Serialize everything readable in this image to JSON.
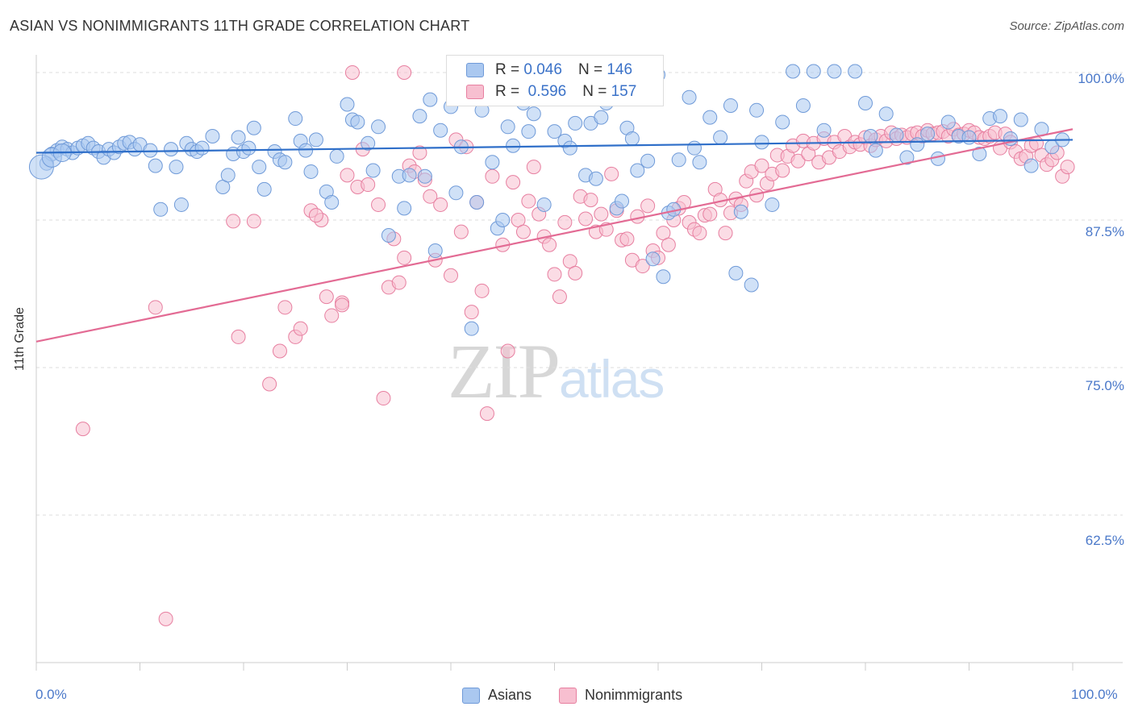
{
  "title": "ASIAN VS NONIMMIGRANTS 11TH GRADE CORRELATION CHART",
  "source": "Source: ZipAtlas.com",
  "watermark": {
    "zip": "ZIP",
    "atlas": "atlas"
  },
  "legend": {
    "rows": [
      {
        "r_label": "R =",
        "r_value": "0.046",
        "n_label": "N =",
        "n_value": "146"
      },
      {
        "r_label": "R =",
        "r_value": "0.596",
        "n_label": "N =",
        "n_value": "157"
      }
    ]
  },
  "bottom_legend": [
    "Asians",
    "Nonimmigrants"
  ],
  "colors": {
    "asians_fill": "#aac8f0",
    "asians_stroke": "#6f9ad8",
    "asians_line": "#2f6fc9",
    "nonimm_fill": "#f7bfd0",
    "nonimm_stroke": "#e77fa0",
    "nonimm_line": "#e36b94",
    "tick_text": "#4a78c9"
  },
  "chart_data": {
    "type": "scatter",
    "title": "ASIAN VS NONIMMIGRANTS 11TH GRADE CORRELATION CHART",
    "xlabel": "",
    "ylabel": "11th Grade",
    "xlim": [
      0,
      100
    ],
    "ylim": [
      50,
      101.5
    ],
    "x_tick_labels": [
      "0.0%",
      "100.0%"
    ],
    "y_ticks": [
      100,
      87.5,
      75,
      62.5
    ],
    "y_tick_labels": [
      "100.0%",
      "87.5%",
      "75.0%",
      "62.5%"
    ],
    "grid": true,
    "legend_position": "top-center",
    "series": [
      {
        "name": "Asians",
        "r": 0.046,
        "n": 146,
        "trend": {
          "x": [
            0,
            100
          ],
          "y": [
            93.2,
            94.3
          ]
        },
        "points": [
          [
            1,
            92.3
          ],
          [
            1.5,
            93.1
          ],
          [
            2,
            93.4
          ],
          [
            2.5,
            93.7
          ],
          [
            3,
            93.5
          ],
          [
            3.5,
            93.2
          ],
          [
            4,
            93.6
          ],
          [
            4.5,
            93.8
          ],
          [
            5,
            94.0
          ],
          [
            5.5,
            93.6
          ],
          [
            6,
            93.3
          ],
          [
            6.5,
            92.8
          ],
          [
            7,
            93.5
          ],
          [
            7.5,
            93.2
          ],
          [
            8,
            93.7
          ],
          [
            8.5,
            94.0
          ],
          [
            9,
            94.1
          ],
          [
            9.5,
            93.5
          ],
          [
            10,
            93.9
          ],
          [
            11,
            93.4
          ],
          [
            11.5,
            92.1
          ],
          [
            12,
            88.4
          ],
          [
            13,
            93.5
          ],
          [
            13.5,
            92.0
          ],
          [
            14,
            88.8
          ],
          [
            14.5,
            94.0
          ],
          [
            15,
            93.5
          ],
          [
            15.5,
            93.3
          ],
          [
            16,
            93.6
          ],
          [
            17,
            94.6
          ],
          [
            18,
            90.3
          ],
          [
            18.5,
            91.3
          ],
          [
            19,
            93.1
          ],
          [
            19.5,
            94.5
          ],
          [
            20,
            93.3
          ],
          [
            20.5,
            93.6
          ],
          [
            21,
            95.3
          ],
          [
            21.5,
            92.0
          ],
          [
            22,
            90.1
          ],
          [
            23,
            93.3
          ],
          [
            23.5,
            92.6
          ],
          [
            24,
            92.4
          ],
          [
            25,
            96.1
          ],
          [
            25.5,
            94.2
          ],
          [
            26,
            93.4
          ],
          [
            26.5,
            91.6
          ],
          [
            27,
            94.3
          ],
          [
            28,
            89.9
          ],
          [
            28.5,
            89.0
          ],
          [
            29,
            92.9
          ],
          [
            30,
            97.3
          ],
          [
            30.5,
            96.0
          ],
          [
            31,
            95.8
          ],
          [
            32,
            94.0
          ],
          [
            32.5,
            91.7
          ],
          [
            33,
            95.4
          ],
          [
            34,
            86.2
          ],
          [
            35,
            91.2
          ],
          [
            35.5,
            88.5
          ],
          [
            36,
            91.3
          ],
          [
            37,
            96.3
          ],
          [
            37.5,
            91.2
          ],
          [
            38,
            97.7
          ],
          [
            38.5,
            84.9
          ],
          [
            39,
            95.1
          ],
          [
            40,
            97.1
          ],
          [
            40.5,
            89.8
          ],
          [
            41,
            93.7
          ],
          [
            42,
            78.3
          ],
          [
            42.5,
            89.0
          ],
          [
            43,
            96.8
          ],
          [
            44,
            92.4
          ],
          [
            44.5,
            86.8
          ],
          [
            45,
            87.5
          ],
          [
            45.5,
            95.4
          ],
          [
            46,
            93.8
          ],
          [
            47,
            97.4
          ],
          [
            47.5,
            95.0
          ],
          [
            48,
            96.5
          ],
          [
            49,
            88.8
          ],
          [
            50,
            95.0
          ],
          [
            51,
            94.2
          ],
          [
            51.5,
            93.6
          ],
          [
            52,
            95.7
          ],
          [
            53,
            91.3
          ],
          [
            53.5,
            95.7
          ],
          [
            54,
            91.0
          ],
          [
            54.5,
            96.2
          ],
          [
            55,
            97.4
          ],
          [
            56,
            88.5
          ],
          [
            56.5,
            89.1
          ],
          [
            57,
            95.3
          ],
          [
            57.5,
            94.4
          ],
          [
            58,
            91.7
          ],
          [
            59,
            92.5
          ],
          [
            59.5,
            84.2
          ],
          [
            60,
            99.8
          ],
          [
            60.5,
            82.7
          ],
          [
            61,
            88.1
          ],
          [
            61.5,
            88.4
          ],
          [
            62,
            92.6
          ],
          [
            63,
            97.9
          ],
          [
            63.5,
            93.6
          ],
          [
            64,
            92.4
          ],
          [
            65,
            96.2
          ],
          [
            66,
            94.5
          ],
          [
            67,
            97.2
          ],
          [
            67.5,
            83.0
          ],
          [
            68,
            88.2
          ],
          [
            69,
            82.0
          ],
          [
            69.5,
            96.8
          ],
          [
            70,
            94.1
          ],
          [
            71,
            88.8
          ],
          [
            72,
            95.8
          ],
          [
            73,
            100.1
          ],
          [
            74,
            97.2
          ],
          [
            75,
            100.1
          ],
          [
            76,
            95.1
          ],
          [
            77,
            100.1
          ],
          [
            79,
            100.1
          ],
          [
            80,
            97.4
          ],
          [
            80.5,
            94.6
          ],
          [
            81,
            93.4
          ],
          [
            82,
            96.5
          ],
          [
            83,
            94.7
          ],
          [
            84,
            92.8
          ],
          [
            85,
            93.9
          ],
          [
            86,
            94.8
          ],
          [
            87,
            92.7
          ],
          [
            88,
            95.8
          ],
          [
            89,
            94.6
          ],
          [
            90,
            94.5
          ],
          [
            91,
            93.1
          ],
          [
            92,
            96.1
          ],
          [
            93,
            96.3
          ],
          [
            94,
            94.4
          ],
          [
            95,
            96.0
          ],
          [
            96,
            92.1
          ],
          [
            97,
            95.2
          ],
          [
            98,
            93.7
          ],
          [
            99,
            94.3
          ]
        ]
      },
      {
        "name": "Nonimmigrants",
        "r": 0.596,
        "n": 157,
        "trend": {
          "x": [
            0,
            100
          ],
          "y": [
            77.2,
            95.2
          ]
        },
        "points": [
          [
            4.5,
            69.8
          ],
          [
            11.5,
            80.1
          ],
          [
            12.5,
            53.7
          ],
          [
            19,
            87.4
          ],
          [
            21,
            87.4
          ],
          [
            22.5,
            73.6
          ],
          [
            23.5,
            76.4
          ],
          [
            24,
            80.1
          ],
          [
            25,
            77.6
          ],
          [
            25.5,
            78.3
          ],
          [
            26.5,
            88.3
          ],
          [
            27.5,
            87.5
          ],
          [
            28,
            81.0
          ],
          [
            28.5,
            79.4
          ],
          [
            29.5,
            80.5
          ],
          [
            30,
            91.3
          ],
          [
            31,
            90.3
          ],
          [
            31.5,
            93.5
          ],
          [
            32,
            90.5
          ],
          [
            33,
            88.8
          ],
          [
            34,
            81.8
          ],
          [
            34.5,
            85.9
          ],
          [
            35,
            82.2
          ],
          [
            35.5,
            84.3
          ],
          [
            36,
            92.1
          ],
          [
            36.5,
            91.6
          ],
          [
            37,
            93.2
          ],
          [
            37.5,
            90.9
          ],
          [
            38,
            89.5
          ],
          [
            38.5,
            84.1
          ],
          [
            39,
            88.8
          ],
          [
            40,
            82.8
          ],
          [
            40.5,
            94.3
          ],
          [
            41,
            86.5
          ],
          [
            41.5,
            93.7
          ],
          [
            42,
            79.7
          ],
          [
            42.5,
            89.0
          ],
          [
            43,
            81.5
          ],
          [
            43.5,
            71.1
          ],
          [
            44,
            91.2
          ],
          [
            45,
            85.4
          ],
          [
            45.5,
            76.4
          ],
          [
            46,
            90.7
          ],
          [
            46.5,
            87.5
          ],
          [
            47,
            86.5
          ],
          [
            47.5,
            89.1
          ],
          [
            48,
            92.0
          ],
          [
            48.5,
            88.0
          ],
          [
            49,
            86.1
          ],
          [
            49.5,
            85.4
          ],
          [
            50,
            82.9
          ],
          [
            50.5,
            81.0
          ],
          [
            51,
            87.3
          ],
          [
            51.5,
            84.0
          ],
          [
            52,
            83.0
          ],
          [
            52.5,
            89.5
          ],
          [
            53,
            87.6
          ],
          [
            53.5,
            89.2
          ],
          [
            54,
            86.5
          ],
          [
            54.5,
            88.0
          ],
          [
            55,
            86.7
          ],
          [
            55.5,
            91.4
          ],
          [
            56,
            88.3
          ],
          [
            56.5,
            85.8
          ],
          [
            57,
            85.9
          ],
          [
            57.5,
            84.1
          ],
          [
            58,
            87.8
          ],
          [
            58.5,
            83.6
          ],
          [
            59,
            88.7
          ],
          [
            59.5,
            84.9
          ],
          [
            60,
            84.3
          ],
          [
            60.5,
            86.4
          ],
          [
            61,
            85.4
          ],
          [
            61.5,
            87.5
          ],
          [
            62,
            88.5
          ],
          [
            62.5,
            89.0
          ],
          [
            63,
            87.3
          ],
          [
            63.5,
            86.7
          ],
          [
            64,
            86.4
          ],
          [
            64.5,
            87.9
          ],
          [
            65,
            88.0
          ],
          [
            65.5,
            90.1
          ],
          [
            66,
            89.2
          ],
          [
            66.5,
            86.4
          ],
          [
            67,
            88.1
          ],
          [
            67.5,
            89.3
          ],
          [
            68,
            88.8
          ],
          [
            68.5,
            90.8
          ],
          [
            69,
            91.6
          ],
          [
            69.5,
            89.6
          ],
          [
            70,
            92.1
          ],
          [
            70.5,
            90.6
          ],
          [
            71,
            91.4
          ],
          [
            71.5,
            93.0
          ],
          [
            72,
            91.7
          ],
          [
            72.5,
            92.9
          ],
          [
            73,
            93.8
          ],
          [
            73.5,
            92.5
          ],
          [
            74,
            94.2
          ],
          [
            74.5,
            93.1
          ],
          [
            75,
            94.0
          ],
          [
            75.5,
            92.4
          ],
          [
            76,
            94.4
          ],
          [
            76.5,
            92.8
          ],
          [
            77,
            94.1
          ],
          [
            77.5,
            93.3
          ],
          [
            78,
            94.6
          ],
          [
            78.5,
            93.7
          ],
          [
            79,
            94.1
          ],
          [
            79.5,
            93.9
          ],
          [
            80,
            94.5
          ],
          [
            80.5,
            93.8
          ],
          [
            81,
            94.3
          ],
          [
            81.5,
            94.6
          ],
          [
            82,
            94.2
          ],
          [
            82.5,
            94.9
          ],
          [
            83,
            94.4
          ],
          [
            83.5,
            94.7
          ],
          [
            84,
            94.5
          ],
          [
            84.5,
            94.8
          ],
          [
            85,
            94.9
          ],
          [
            85.5,
            94.6
          ],
          [
            86,
            95.1
          ],
          [
            86.5,
            94.8
          ],
          [
            87,
            94.9
          ],
          [
            87.5,
            95.0
          ],
          [
            88,
            94.6
          ],
          [
            88.5,
            95.2
          ],
          [
            89,
            94.7
          ],
          [
            89.5,
            94.8
          ],
          [
            90,
            95.1
          ],
          [
            90.5,
            94.9
          ],
          [
            91,
            94.5
          ],
          [
            91.5,
            94.4
          ],
          [
            92,
            94.6
          ],
          [
            92.5,
            94.9
          ],
          [
            93,
            93.6
          ],
          [
            93.5,
            94.8
          ],
          [
            94,
            94.1
          ],
          [
            94.5,
            93.3
          ],
          [
            95,
            92.7
          ],
          [
            95.5,
            92.9
          ],
          [
            96,
            93.8
          ],
          [
            96.5,
            94.0
          ],
          [
            97,
            93.0
          ],
          [
            97.5,
            92.2
          ],
          [
            98,
            92.6
          ],
          [
            98.5,
            93.2
          ],
          [
            99,
            91.2
          ],
          [
            99.5,
            92.0
          ],
          [
            19.5,
            77.6
          ],
          [
            27,
            87.9
          ],
          [
            33.5,
            72.4
          ],
          [
            29.5,
            80.3
          ],
          [
            30.5,
            100.0
          ],
          [
            35.5,
            100.0
          ]
        ]
      }
    ]
  }
}
